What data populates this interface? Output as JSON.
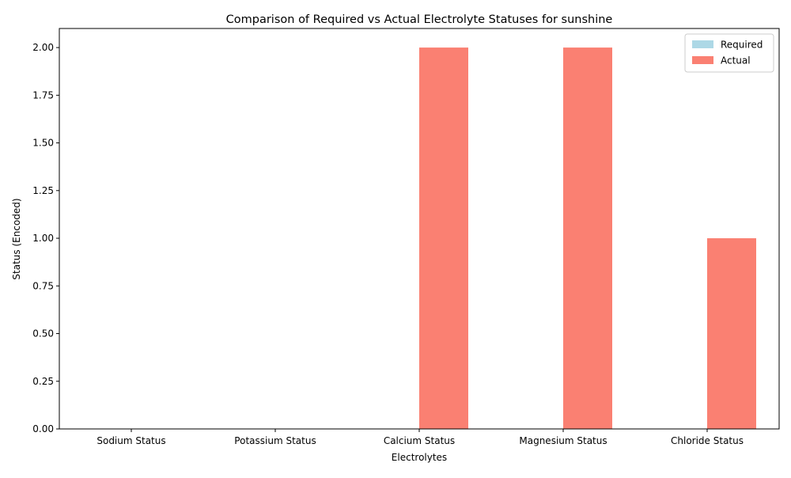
{
  "chart_data": {
    "type": "bar",
    "title": "Comparison of Required vs Actual Electrolyte Statuses for sunshine",
    "xlabel": "Electrolytes",
    "ylabel": "Status (Encoded)",
    "categories": [
      "Sodium Status",
      "Potassium Status",
      "Calcium Status",
      "Magnesium Status",
      "Chloride Status"
    ],
    "series": [
      {
        "name": "Required",
        "color": "#add8e6",
        "values": [
          0,
          0,
          0,
          0,
          0
        ]
      },
      {
        "name": "Actual",
        "color": "#fa8072",
        "values": [
          0,
          0,
          2,
          2,
          1
        ]
      }
    ],
    "ylim": [
      0,
      2.1
    ],
    "yticks": [
      "0.00",
      "0.25",
      "0.50",
      "0.75",
      "1.00",
      "1.25",
      "1.50",
      "1.75",
      "2.00"
    ],
    "grid": false,
    "legend_position": "top-right"
  }
}
